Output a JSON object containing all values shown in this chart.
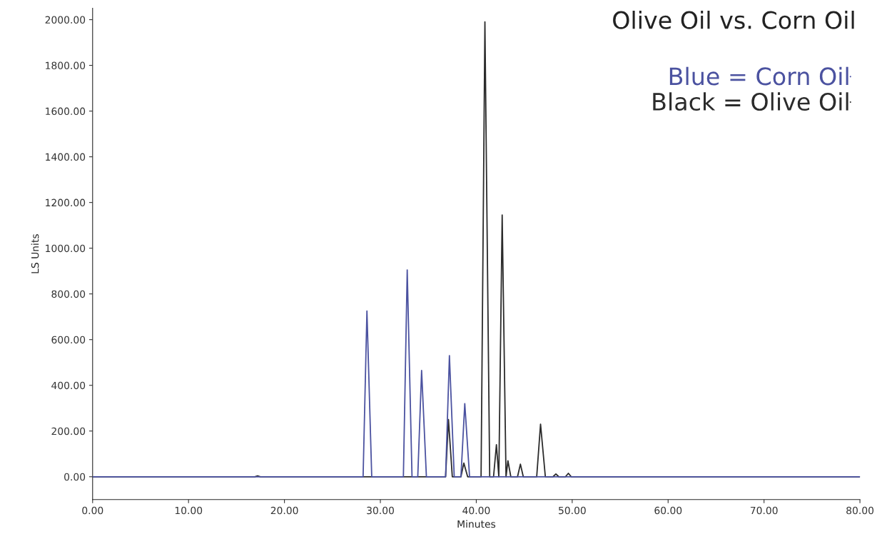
{
  "chart_data": {
    "type": "line",
    "title": "Olive Oil vs. Corn Oil",
    "xlabel": "Minutes",
    "ylabel": "LS Units",
    "xlim": [
      0,
      80
    ],
    "ylim": [
      -100,
      2050
    ],
    "xticks": [
      {
        "value": 0,
        "label": "0.00"
      },
      {
        "value": 10,
        "label": "10.00"
      },
      {
        "value": 20,
        "label": "20.00"
      },
      {
        "value": 30,
        "label": "30.00"
      },
      {
        "value": 40,
        "label": "40.00"
      },
      {
        "value": 50,
        "label": "50.00"
      },
      {
        "value": 60,
        "label": "60.00"
      },
      {
        "value": 70,
        "label": "70.00"
      },
      {
        "value": 80,
        "label": "80.00"
      }
    ],
    "yticks": [
      {
        "value": 0,
        "label": "0.00"
      },
      {
        "value": 200,
        "label": "200.00"
      },
      {
        "value": 400,
        "label": "400.00"
      },
      {
        "value": 600,
        "label": "600.00"
      },
      {
        "value": 800,
        "label": "800.00"
      },
      {
        "value": 1000,
        "label": "1000.00"
      },
      {
        "value": 1200,
        "label": "1200.00"
      },
      {
        "value": 1400,
        "label": "1400.00"
      },
      {
        "value": 1600,
        "label": "1600.00"
      },
      {
        "value": 1800,
        "label": "1800.00"
      },
      {
        "value": 2000,
        "label": "2000.00"
      }
    ],
    "grid": false,
    "legend": "top right",
    "marker": "none",
    "line_style": "solid",
    "series": [
      {
        "name": "Blue = Corn Oil",
        "color": "#4b52a0",
        "x": [
          0,
          28.2,
          28.6,
          29.1,
          32.4,
          32.8,
          33.3,
          33.9,
          34.3,
          34.8,
          36.8,
          37.2,
          37.7,
          38.4,
          38.8,
          39.3,
          80
        ],
        "values": [
          0,
          0,
          725,
          0,
          0,
          905,
          0,
          0,
          465,
          0,
          0,
          530,
          0,
          0,
          320,
          0,
          0
        ]
      },
      {
        "name": "Black = Olive Oil",
        "color": "#2b2b2b",
        "x": [
          0,
          16.9,
          17.2,
          17.5,
          36.8,
          37.1,
          37.5,
          38.4,
          38.7,
          39.1,
          40.5,
          40.9,
          41.4,
          41.8,
          42.1,
          42.35,
          42.7,
          43.1,
          43.3,
          43.6,
          44.3,
          44.6,
          44.9,
          46.3,
          46.7,
          47.2,
          48.0,
          48.3,
          48.6,
          49.3,
          49.6,
          49.9,
          80
        ],
        "values": [
          0,
          0,
          4,
          0,
          0,
          250,
          0,
          0,
          60,
          0,
          0,
          1990,
          0,
          0,
          140,
          0,
          1145,
          0,
          70,
          0,
          0,
          55,
          0,
          0,
          230,
          0,
          0,
          12,
          0,
          0,
          15,
          0,
          0
        ]
      }
    ]
  }
}
